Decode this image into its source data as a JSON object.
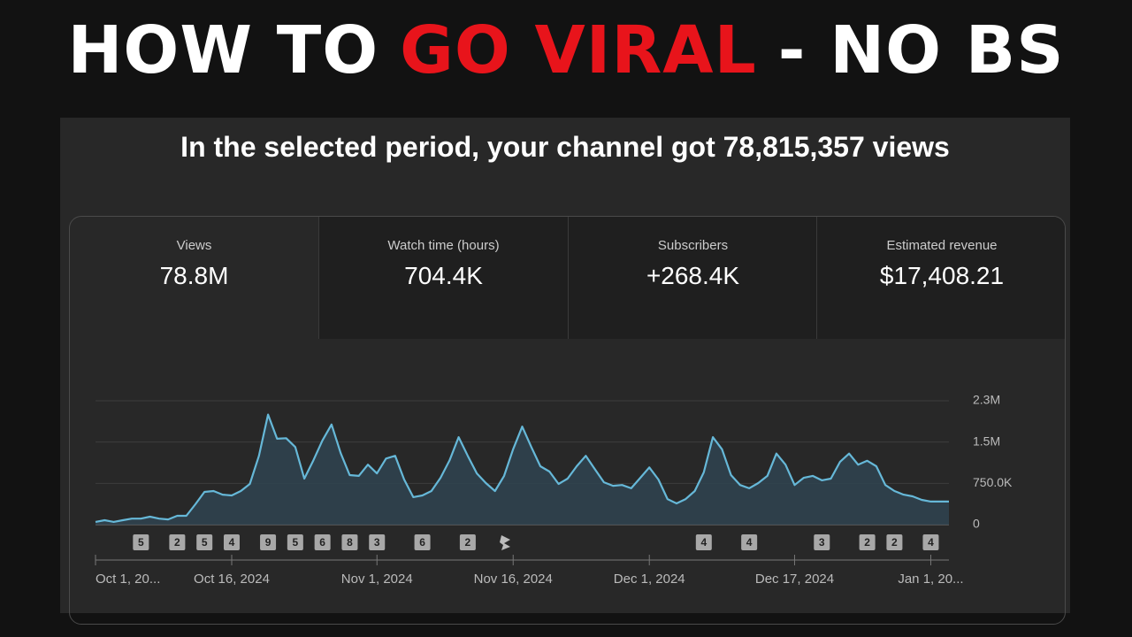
{
  "headline": [
    {
      "text": "HOW TO",
      "color": "#ffffff"
    },
    {
      "text": "GO VIRAL",
      "color": "#e8141b"
    },
    {
      "text": "- NO BS",
      "color": "#ffffff"
    }
  ],
  "summary": "In the selected period, your channel got 78,815,357 views",
  "metrics": [
    {
      "label": "Views",
      "value": "78.8M"
    },
    {
      "label": "Watch time (hours)",
      "value": "704.4K"
    },
    {
      "label": "Subscribers",
      "value": "+268.4K"
    },
    {
      "label": "Estimated revenue",
      "value": "$17,408.21"
    }
  ],
  "chart_data": {
    "type": "line",
    "color": "#66b8d8",
    "grid": true,
    "categories": [
      "Oct 1, 20...",
      null,
      null,
      null,
      null,
      null,
      null,
      null,
      null,
      null,
      null,
      null,
      null,
      null,
      null,
      "Oct 16, 2024",
      null,
      null,
      null,
      null,
      null,
      null,
      null,
      null,
      null,
      null,
      null,
      null,
      null,
      null,
      null,
      "Nov 1, 2024",
      null,
      null,
      null,
      null,
      null,
      null,
      null,
      null,
      null,
      null,
      null,
      null,
      null,
      null,
      "Nov 16, 2024",
      null,
      null,
      null,
      null,
      null,
      null,
      null,
      null,
      null,
      null,
      null,
      null,
      null,
      null,
      "Dec 1, 2024",
      null,
      null,
      null,
      null,
      null,
      null,
      null,
      null,
      null,
      null,
      null,
      null,
      null,
      null,
      null,
      "Dec 17, 2024",
      null,
      null,
      null,
      null,
      null,
      null,
      null,
      null,
      null,
      null,
      null,
      null,
      null,
      null,
      "Jan 1, 20...",
      null,
      null
    ],
    "values": [
      50000,
      80000,
      50000,
      80000,
      110000,
      110000,
      145000,
      110000,
      95000,
      160000,
      160000,
      370000,
      595000,
      610000,
      545000,
      530000,
      610000,
      740000,
      1250000,
      2000000,
      1560000,
      1570000,
      1410000,
      835000,
      1170000,
      1530000,
      1820000,
      1300000,
      900000,
      885000,
      1090000,
      930000,
      1200000,
      1250000,
      820000,
      500000,
      530000,
      610000,
      850000,
      1170000,
      1590000,
      1250000,
      930000,
      755000,
      610000,
      885000,
      1370000,
      1780000,
      1410000,
      1060000,
      965000,
      740000,
      835000,
      1060000,
      1250000,
      1010000,
      770000,
      705000,
      720000,
      660000,
      850000,
      1040000,
      820000,
      465000,
      385000,
      465000,
      610000,
      950000,
      1590000,
      1370000,
      900000,
      720000,
      660000,
      755000,
      885000,
      1290000,
      1090000,
      720000,
      850000,
      885000,
      805000,
      835000,
      1140000,
      1290000,
      1090000,
      1160000,
      1060000,
      720000,
      610000,
      545000,
      515000,
      450000,
      420000,
      420000,
      420000
    ],
    "video_markers": [
      null,
      null,
      null,
      null,
      null,
      5,
      null,
      null,
      null,
      2,
      null,
      null,
      5,
      null,
      null,
      4,
      null,
      null,
      null,
      9,
      null,
      null,
      5,
      null,
      null,
      6,
      null,
      null,
      8,
      null,
      null,
      3,
      null,
      null,
      null,
      null,
      6,
      null,
      null,
      null,
      null,
      2,
      null,
      null,
      null,
      null,
      null,
      null,
      null,
      null,
      null,
      null,
      null,
      null,
      null,
      null,
      null,
      null,
      null,
      null,
      null,
      null,
      null,
      null,
      null,
      null,
      null,
      4,
      null,
      null,
      null,
      null,
      4,
      null,
      null,
      null,
      null,
      null,
      null,
      null,
      3,
      null,
      null,
      null,
      null,
      2,
      null,
      null,
      2,
      null,
      null,
      null,
      4,
      null,
      null
    ],
    "ylim": [
      0,
      2250000
    ],
    "yticks": [
      0,
      {
        "value": 750000,
        "label": "750.0K"
      },
      {
        "value": 1500000,
        "label": "1.5M"
      },
      {
        "value": 2250000,
        "label": "2.3M"
      }
    ]
  }
}
